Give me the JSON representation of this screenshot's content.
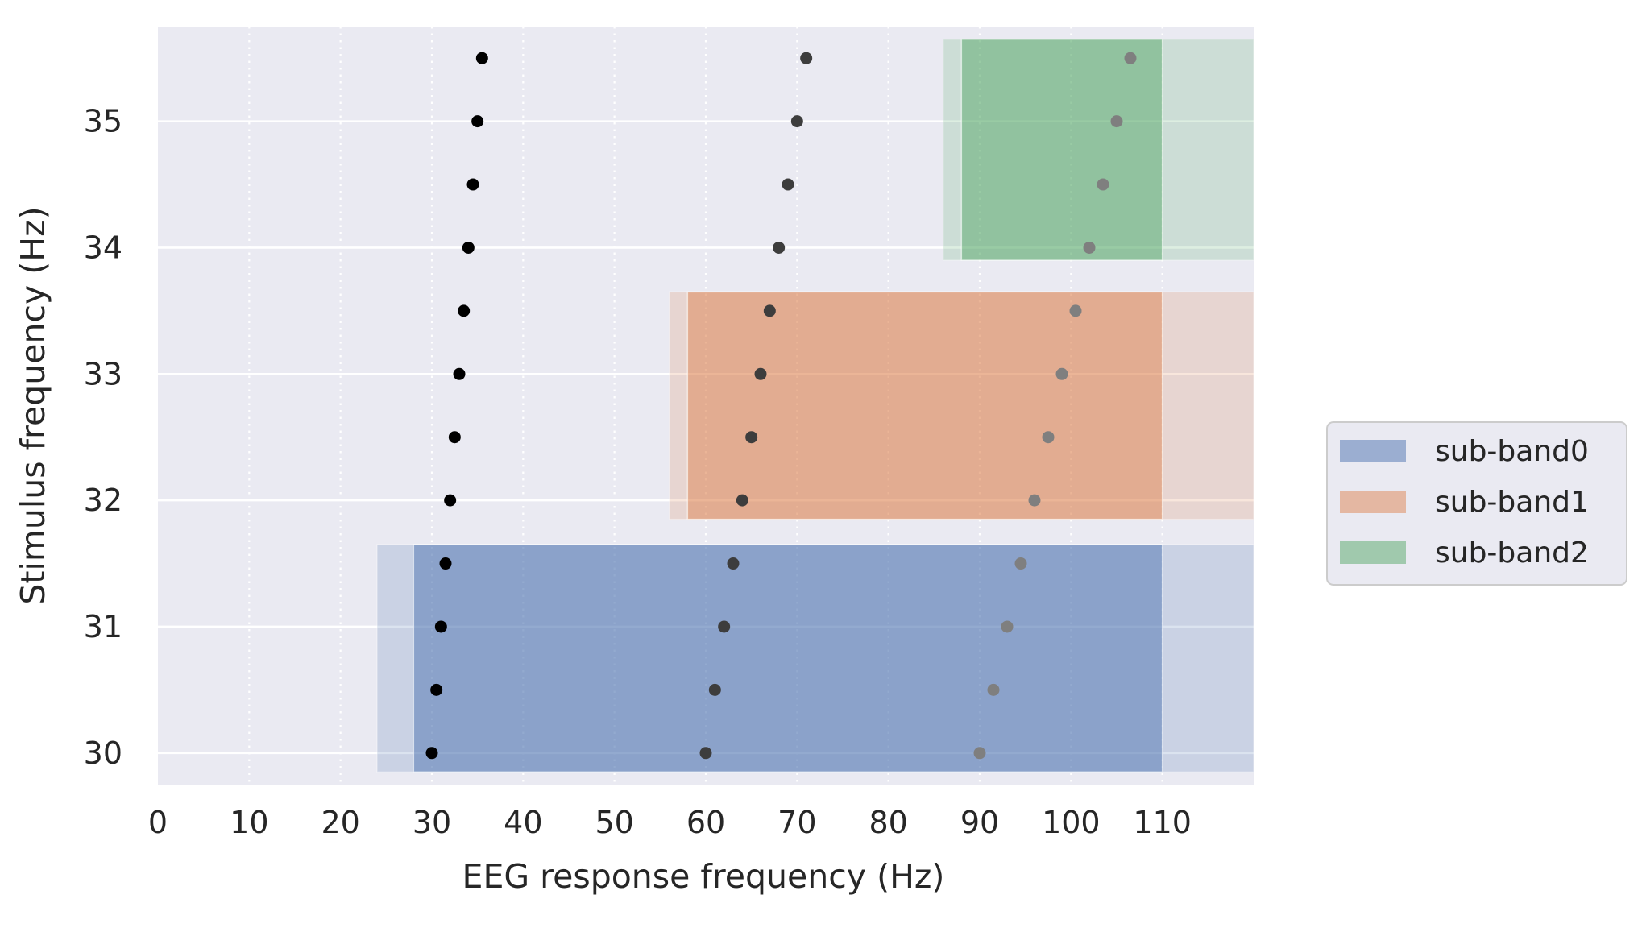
{
  "chart_data": {
    "type": "scatter",
    "xlabel": "EEG response frequency (Hz)",
    "ylabel": "Stimulus frequency (Hz)",
    "xlim": [
      0,
      120
    ],
    "ylim": [
      29.75,
      35.75
    ],
    "x_ticks": [
      0,
      10,
      20,
      30,
      40,
      50,
      60,
      70,
      80,
      90,
      100,
      110
    ],
    "y_ticks": [
      30,
      31,
      32,
      33,
      34,
      35
    ],
    "grid": true,
    "legend_position": "right",
    "stimulus_frequencies": [
      30,
      30.5,
      31,
      31.5,
      32,
      32.5,
      33,
      33.5,
      34,
      34.5,
      35,
      35.5
    ],
    "harmonics": [
      {
        "order": 1,
        "color": "#000000",
        "x": [
          30,
          30.5,
          31,
          31.5,
          32,
          32.5,
          33,
          33.5,
          34,
          34.5,
          35,
          35.5
        ]
      },
      {
        "order": 2,
        "color": "#3d3d3d",
        "x": [
          60,
          61,
          62,
          63,
          64,
          65,
          66,
          67,
          68,
          69,
          70,
          71
        ]
      },
      {
        "order": 3,
        "color": "#7f7f7f",
        "x": [
          90,
          91.5,
          93,
          94.5,
          96,
          97.5,
          99,
          100.5,
          102,
          103.5,
          105,
          106.5
        ]
      }
    ],
    "sub_bands": [
      {
        "name": "sub-band0",
        "color": "#4c72b0",
        "pass_band": [
          28,
          110
        ],
        "stop_band": [
          24,
          120
        ],
        "y_range": [
          29.85,
          31.65
        ]
      },
      {
        "name": "sub-band1",
        "color": "#dd8452",
        "pass_band": [
          58,
          110
        ],
        "stop_band": [
          56,
          120
        ],
        "y_range": [
          31.85,
          33.65
        ]
      },
      {
        "name": "sub-band2",
        "color": "#55a868",
        "pass_band": [
          88,
          110
        ],
        "stop_band": [
          86,
          120
        ],
        "y_range": [
          33.9,
          35.65
        ]
      }
    ],
    "colors": {
      "plot_background": "#eaeaf2",
      "grid": "#ffffff",
      "text": "#262626"
    }
  }
}
